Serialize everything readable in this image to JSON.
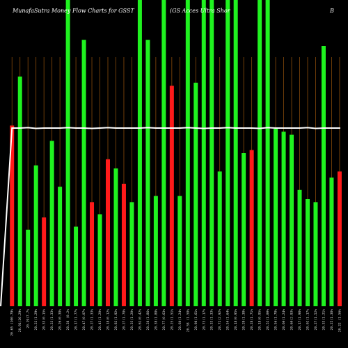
{
  "header": {
    "left": "MunafaSutra  Money Flow  Charts for GSST",
    "middle": "(GS Acces Ultra  Shor",
    "right": "B"
  },
  "colors": {
    "up": "#1ff21f",
    "down": "#ff1a1a",
    "grid": "#8a4b0a",
    "line": "#ffffff",
    "background": "#000000"
  },
  "chart_data": {
    "type": "bar",
    "grid": true,
    "ylim": [
      0,
      100
    ],
    "categories": [
      "20.65 (100.79%",
      "20.91(26.29%",
      "20.19(7.7%",
      "20.22(1.29%",
      "20.33(0.15%",
      "20.23(1.33%",
      "20.26(0.38%",
      "20.38 (0.2%",
      "20.17(1.77%",
      "20.47(0.07%",
      "20.27(1.33%",
      "20.45(1.20%",
      "20.18(0.12%",
      "20.82(1.92%",
      "20.27(1.78%",
      "20.35(1.20%",
      "20.61(0.42%",
      "20.28(1.86%",
      "20.38(1.88%",
      "20.77(0.63%",
      "20.25(1.51%",
      "20.60(1.24%",
      "20.58 (1.58%",
      "20.98(1.61%",
      "20.73(1.17%",
      "20.33(1.33%",
      "20.72(2.92%",
      "20.54(1.64%",
      "20.18(0.95%",
      "20.29(1.38%",
      "20.28(1.71%",
      "20.18(0.95%",
      "20.52(1.00%",
      "20.56(1.78%",
      "20.60(1.24%",
      "20.60(2.93%",
      "20.17(1.98%",
      "20.02(1.17%",
      "20.27(1.52%",
      "20.33(1.21%",
      "20.25(1.38%",
      "20.22 (1.56%"
    ],
    "series": [
      {
        "values": [
          59,
          75,
          25,
          46,
          29,
          54,
          39,
          100,
          26,
          87,
          34,
          30,
          48,
          45,
          40,
          34,
          100,
          87,
          36,
          100,
          72,
          36,
          100,
          73,
          100,
          100,
          44,
          100,
          100,
          50,
          51,
          100,
          100,
          58,
          57,
          56,
          38,
          35,
          34,
          85,
          42,
          44
        ],
        "colors": [
          "red",
          "green",
          "green",
          "green",
          "red",
          "green",
          "green",
          "green",
          "green",
          "green",
          "red",
          "green",
          "red",
          "green",
          "red",
          "green",
          "green",
          "green",
          "green",
          "green",
          "red",
          "green",
          "green",
          "green",
          "green",
          "green",
          "green",
          "green",
          "green",
          "green",
          "red",
          "green",
          "green",
          "green",
          "green",
          "green",
          "green",
          "green",
          "green",
          "green",
          "green",
          "red"
        ]
      },
      {
        "values": [
          58,
          58,
          58,
          58,
          58,
          58,
          58,
          58,
          58,
          58,
          58,
          58,
          58,
          58,
          58,
          58,
          58,
          58,
          58,
          58,
          58,
          58,
          58,
          58,
          58,
          58,
          58,
          58,
          58,
          58,
          58,
          58,
          58,
          58,
          58,
          58,
          58,
          58,
          58,
          58,
          58,
          58
        ]
      }
    ]
  }
}
